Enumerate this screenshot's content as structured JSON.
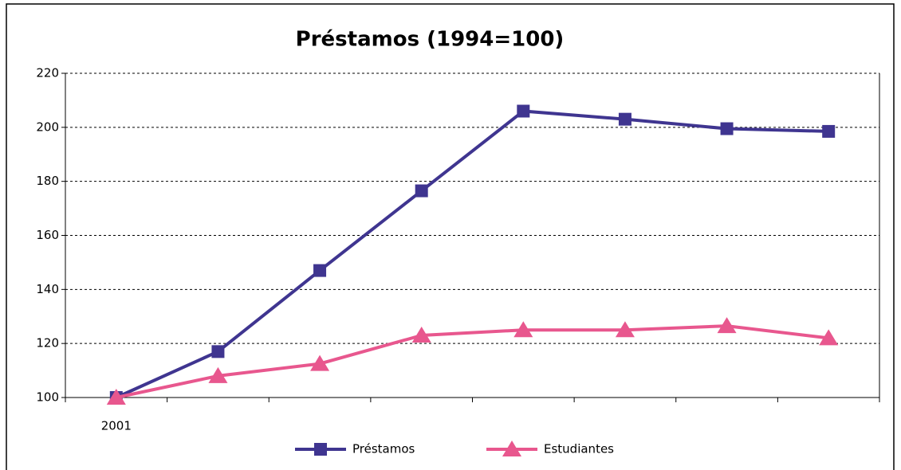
{
  "chart_data": {
    "type": "line",
    "title": "Préstamos (1994=100)",
    "categories": [
      "2001",
      null,
      null,
      null,
      null,
      null,
      null,
      null
    ],
    "series": [
      {
        "name": "Préstamos",
        "color": "#3f3590",
        "marker": "square",
        "values": [
          100,
          117,
          147,
          176.5,
          206,
          203,
          199.5,
          198.5
        ]
      },
      {
        "name": "Estudiantes",
        "color": "#e8578e",
        "marker": "triangle",
        "values": [
          100,
          108,
          112.5,
          123,
          125,
          125,
          126.5,
          122
        ]
      }
    ],
    "ylim": [
      100,
      220
    ],
    "yticks": [
      100,
      120,
      140,
      160,
      180,
      200,
      220
    ],
    "grid": true,
    "legend": "bottom"
  }
}
